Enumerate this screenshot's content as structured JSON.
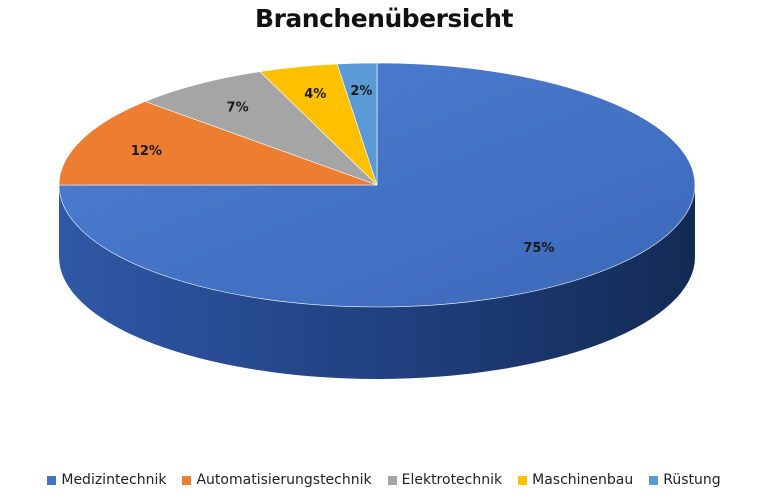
{
  "chart_data": {
    "type": "pie",
    "title": "Branchenübersicht",
    "categories": [
      "Medizintechnik",
      "Automatisierungstechnik",
      "Elektrotechnik",
      "Maschinenbau",
      "Rüstung"
    ],
    "values": [
      75,
      12,
      7,
      4,
      2
    ],
    "labels": [
      "75%",
      "12%",
      "7%",
      "4%",
      "2%"
    ],
    "colors": [
      "#4472C4",
      "#ED7D31",
      "#A5A5A5",
      "#FFC000",
      "#5B9BD5"
    ],
    "legend_position": "bottom",
    "style": "3d"
  }
}
